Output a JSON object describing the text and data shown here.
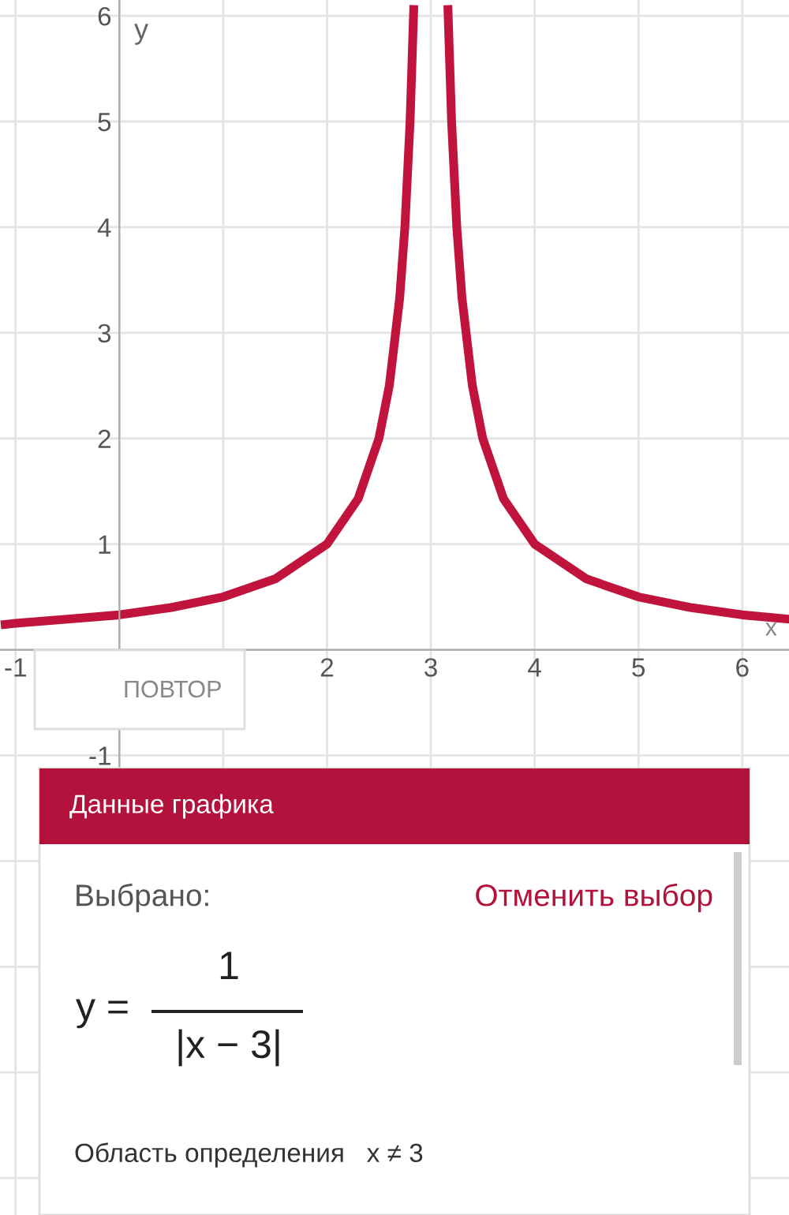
{
  "chart_data": {
    "type": "line",
    "xlabel": "x",
    "ylabel": "y",
    "x": [
      -1.1,
      -1,
      -0.5,
      0,
      0.5,
      1,
      1.5,
      2,
      2.3,
      2.5,
      2.6,
      2.7,
      2.75,
      2.8,
      2.835,
      null,
      3.165,
      3.2,
      3.25,
      3.3,
      3.4,
      3.5,
      3.7,
      4,
      4.5,
      5,
      5.5,
      6,
      6.45
    ],
    "series": [
      {
        "color": "#c0143c",
        "values": [
          0.24,
          0.25,
          0.29,
          0.33,
          0.4,
          0.5,
          0.67,
          1,
          1.43,
          2,
          2.5,
          3.33,
          4,
          5,
          6.06,
          null,
          6.06,
          5,
          4,
          3.33,
          2.5,
          2,
          1.43,
          1,
          0.67,
          0.5,
          0.4,
          0.33,
          0.29
        ]
      }
    ],
    "xlim": [
      -1.15,
      6.45
    ],
    "ylim": [
      -5.35,
      6.15
    ],
    "xticks": [
      -1,
      {
        "value": 0,
        "label": null
      },
      {
        "value": 1,
        "label": null
      },
      2,
      3,
      4,
      5,
      6
    ],
    "yticks": [
      {
        "value": -5,
        "label": null
      },
      {
        "value": -4,
        "label": null
      },
      {
        "value": -3,
        "label": null
      },
      {
        "value": -2,
        "label": null
      },
      -1,
      {
        "value": 0,
        "label": null
      },
      1,
      2,
      3,
      4,
      5,
      6
    ],
    "grid": true,
    "legend": false,
    "marker": "none",
    "line_style": "solid",
    "annotations": [
      "ПОВТОР",
      "Данные графика",
      "Выбрано:",
      "Отменить выбор",
      "y =",
      "1",
      "|x − 3|",
      "Область определения   x ≠ 3"
    ]
  }
}
